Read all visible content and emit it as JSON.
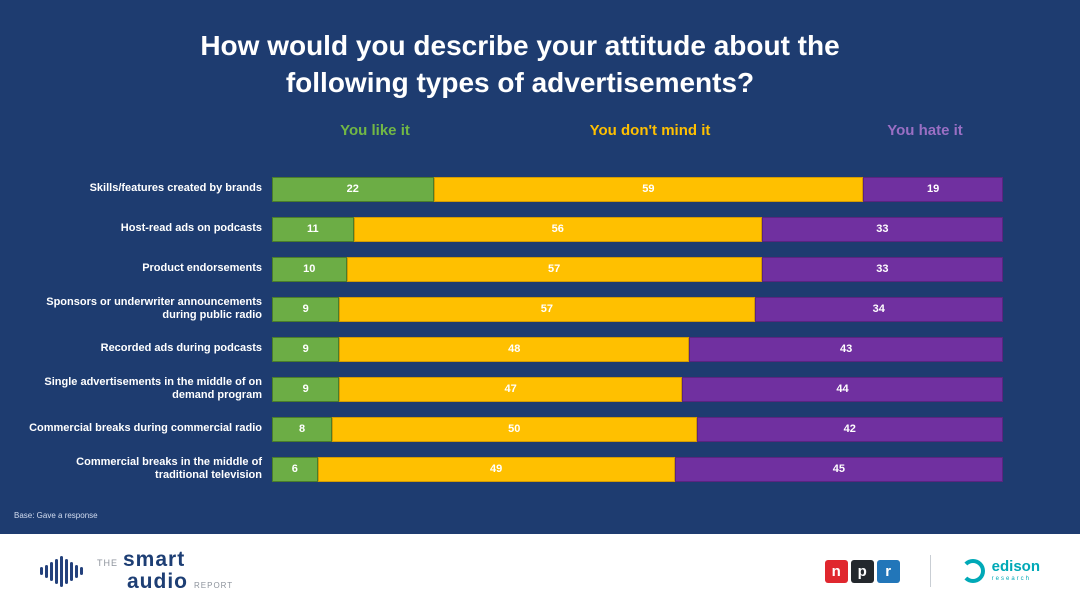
{
  "slide": {
    "background": "#1e3c70",
    "title": "How would you describe your attitude about the following types of advertisements?",
    "footnote": "Base: Gave a response"
  },
  "chart_data": {
    "type": "bar",
    "stacked": true,
    "orientation": "horizontal",
    "unit": "percent",
    "xlim": [
      0,
      100
    ],
    "legend_position": "top",
    "value_labels": true,
    "categories": [
      "Skills/features created by brands",
      "Host-read ads on podcasts",
      "Product endorsements",
      "Sponsors or underwriter announcements during public radio",
      "Recorded ads during podcasts",
      "Single advertisements in the middle of on demand program",
      "Commercial breaks during commercial radio",
      "Commercial breaks in the middle of traditional television"
    ],
    "series": [
      {
        "name": "You like it",
        "color": "#6cad45",
        "border_color": "#4a7d2b",
        "header_color": "#72b845",
        "values": [
          22,
          11,
          10,
          9,
          9,
          9,
          8,
          6
        ]
      },
      {
        "name": "You don't mind it",
        "color": "#ffc000",
        "border_color": "#d49b00",
        "header_color": "#ffc000",
        "values": [
          59,
          56,
          57,
          57,
          48,
          47,
          50,
          49
        ]
      },
      {
        "name": "You hate it",
        "color": "#7030a0",
        "border_color": "#5a2480",
        "header_color": "#9a6fc4",
        "values": [
          19,
          33,
          33,
          34,
          43,
          44,
          42,
          45
        ]
      }
    ]
  },
  "footer": {
    "brand": {
      "the": "THE",
      "smart": "smart",
      "audio": "audio",
      "report": "REPORT"
    },
    "npr": {
      "letters": [
        "n",
        "p",
        "r"
      ],
      "colors": [
        "#e0272e",
        "#23282d",
        "#2276b9"
      ]
    },
    "edison": {
      "name": "edison",
      "sub": "research",
      "color": "#00a9b7"
    }
  }
}
